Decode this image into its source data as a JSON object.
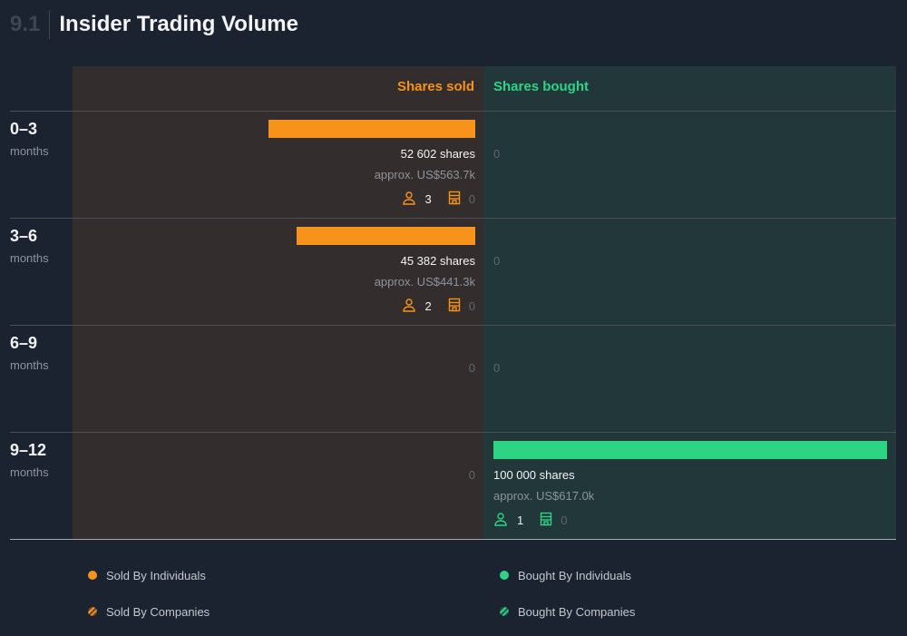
{
  "header": {
    "section_number": "9.1",
    "title": "Insider Trading Volume"
  },
  "colors": {
    "sold": "#f7921a",
    "bought": "#2dd484",
    "sold_bg": "#332e2d",
    "bought_bg": "#21373a",
    "background": "#1b2230"
  },
  "chart_data": {
    "type": "bar",
    "title": "Insider Trading Volume",
    "orientation": "horizontal-diverging",
    "columns": {
      "sold": "Shares sold",
      "bought": "Shares bought"
    },
    "categories": [
      "0–3 months",
      "3–6 months",
      "6–9 months",
      "9–12 months"
    ],
    "series": [
      {
        "name": "Shares sold",
        "values": [
          52602,
          45382,
          0,
          0
        ]
      },
      {
        "name": "Shares bought",
        "values": [
          0,
          0,
          0,
          100000
        ]
      }
    ],
    "scale_max": 100000
  },
  "rows": [
    {
      "range": "0–3",
      "unit": "months",
      "sold": {
        "shares": 52602,
        "shares_label": "52 602 shares",
        "approx": "approx. US$563.7k",
        "individuals": "3",
        "companies": "0"
      },
      "bought": {
        "shares": 0,
        "zero": "0"
      }
    },
    {
      "range": "3–6",
      "unit": "months",
      "sold": {
        "shares": 45382,
        "shares_label": "45 382 shares",
        "approx": "approx. US$441.3k",
        "individuals": "2",
        "companies": "0"
      },
      "bought": {
        "shares": 0,
        "zero": "0"
      }
    },
    {
      "range": "6–9",
      "unit": "months",
      "sold": {
        "shares": 0,
        "zero": "0"
      },
      "bought": {
        "shares": 0,
        "zero": "0"
      }
    },
    {
      "range": "9–12",
      "unit": "months",
      "sold": {
        "shares": 0,
        "zero": "0"
      },
      "bought": {
        "shares": 100000,
        "shares_label": "100 000 shares",
        "approx": "approx. US$617.0k",
        "individuals": "1",
        "companies": "0"
      }
    }
  ],
  "legend": {
    "sold_individuals": "Sold By Individuals",
    "sold_companies": "Sold By Companies",
    "bought_individuals": "Bought By Individuals",
    "bought_companies": "Bought By Companies"
  }
}
